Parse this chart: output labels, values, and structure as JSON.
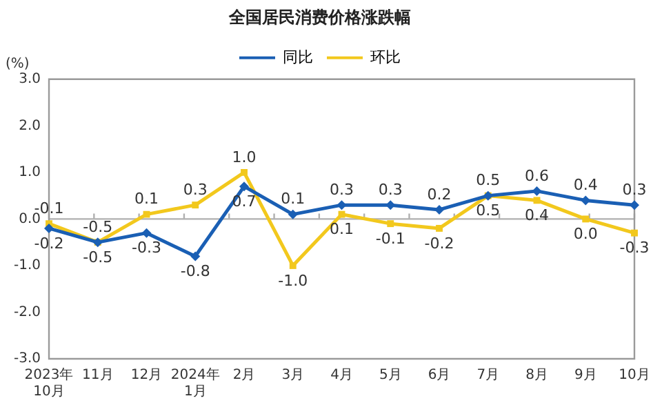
{
  "chart_data": {
    "type": "line",
    "title": "全国居民消费价格涨跌幅",
    "ylabel": "(%)",
    "categories": [
      "2023年\n10月",
      "11月",
      "12月",
      "2024年\n1月",
      "2月",
      "3月",
      "4月",
      "5月",
      "6月",
      "7月",
      "8月",
      "9月",
      "10月"
    ],
    "series": [
      {
        "name": "同比",
        "color": "#1a5fb4",
        "marker": "diamond",
        "values": [
          -0.2,
          -0.5,
          -0.3,
          -0.8,
          0.7,
          0.1,
          0.3,
          0.3,
          0.2,
          0.5,
          0.6,
          0.4,
          0.3
        ],
        "value_labels": [
          "-0.2",
          "-0.5",
          "-0.3",
          "-0.8",
          "0.7",
          "0.1",
          "0.3",
          "0.3",
          "0.2",
          "0.5",
          "0.6",
          "0.4",
          "0.3"
        ]
      },
      {
        "name": "环比",
        "color": "#f2c81d",
        "marker": "square",
        "values": [
          -0.1,
          -0.5,
          0.1,
          0.3,
          1.0,
          -1.0,
          0.1,
          -0.1,
          -0.2,
          0.5,
          0.4,
          0.0,
          -0.3
        ],
        "value_labels": [
          "-0.1",
          "-0.5",
          "0.1",
          "0.3",
          "1.0",
          "-1.0",
          "0.1",
          "-0.1",
          "-0.2",
          "0.5",
          "0.4",
          "0.0",
          "-0.3"
        ]
      }
    ],
    "ylim": [
      -3.0,
      3.0
    ],
    "yticks": [
      {
        "value": -3,
        "label": "-3.0"
      },
      {
        "value": -2,
        "label": "-2.0"
      },
      {
        "value": -1,
        "label": "-1.0"
      },
      {
        "value": 0,
        "label": "0.0"
      },
      {
        "value": 1,
        "label": "1.0"
      },
      {
        "value": 2,
        "label": "2.0"
      },
      {
        "value": 3,
        "label": "3.0"
      }
    ],
    "ref_lines": [
      {
        "axis": "y",
        "value": 0,
        "color": "#b0b0b0"
      }
    ],
    "grid": false,
    "legend": "top",
    "line_style": "solid"
  }
}
